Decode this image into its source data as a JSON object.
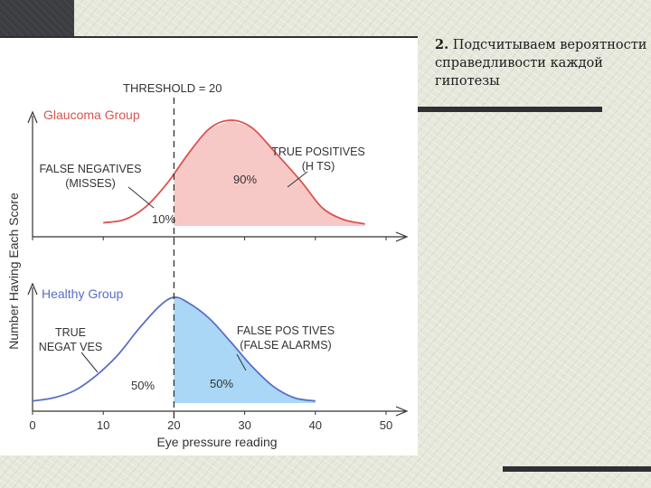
{
  "slide": {
    "number": "2.",
    "text": "Подсчитываем вероятности справедливости каждой гипотезы"
  },
  "chart_data": {
    "type": "area",
    "xlabel": "Eye pressure reading",
    "ylabel": "Number Having Each Score",
    "xlim": [
      0,
      50
    ],
    "xticks": [
      "0",
      "10",
      "20",
      "30",
      "40",
      "50"
    ],
    "threshold": {
      "x": 20,
      "label": "THRESHOLD = 20"
    },
    "panels": [
      {
        "name": "Glaucoma Group",
        "color": "#d9534f",
        "fill": "#f7c9c6",
        "curve": {
          "x": [
            10,
            13,
            16,
            19,
            22,
            25,
            28,
            31,
            34,
            38,
            41,
            44,
            47
          ],
          "y": [
            0.03,
            0.06,
            0.18,
            0.4,
            0.68,
            0.92,
            1.0,
            0.93,
            0.72,
            0.42,
            0.17,
            0.06,
            0.02
          ]
        },
        "regions": [
          {
            "label": "10%",
            "x_range": [
              10,
              20
            ],
            "name": "FALSE NEGATIVES (MISSES)"
          },
          {
            "label": "90%",
            "x_range": [
              20,
              47
            ],
            "name": "TRUE POSITIVES (HITS)"
          }
        ],
        "annotations": [
          {
            "lines": [
              "FALSE NEGATIVES",
              "(MISSES)"
            ]
          },
          {
            "lines": [
              "TRUE POSITIVES",
              "(H TS)"
            ]
          }
        ]
      },
      {
        "name": "Healthy Group",
        "color": "#5b6ec7",
        "fill": "#a9d7f5",
        "curve": {
          "x": [
            0,
            3,
            6,
            9,
            12,
            15,
            18,
            20,
            22,
            25,
            28,
            31,
            34,
            37,
            40
          ],
          "y": [
            0.02,
            0.05,
            0.12,
            0.26,
            0.45,
            0.7,
            0.92,
            1.0,
            0.95,
            0.8,
            0.58,
            0.35,
            0.16,
            0.05,
            0.02
          ]
        },
        "regions": [
          {
            "label": "50%",
            "x_range": [
              0,
              20
            ],
            "name": "TRUE NEGATIVES"
          },
          {
            "label": "50%",
            "x_range": [
              20,
              40
            ],
            "name": "FALSE POSITIVES (FALSE ALARMS)"
          }
        ],
        "annotations": [
          {
            "lines": [
              "TRUE",
              "NEGAT VES"
            ]
          },
          {
            "lines": [
              "FALSE POS TIVES",
              "(FALSE ALARMS)"
            ]
          }
        ]
      }
    ]
  }
}
